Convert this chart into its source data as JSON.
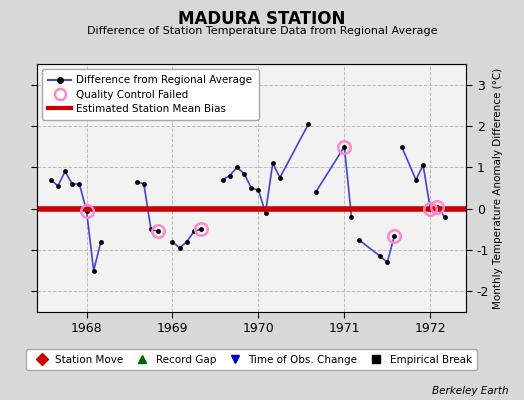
{
  "title": "MADURA STATION",
  "subtitle": "Difference of Station Temperature Data from Regional Average",
  "ylabel_right": "Monthly Temperature Anomaly Difference (°C)",
  "credit": "Berkeley Earth",
  "background_color": "#d8d8d8",
  "plot_bg_color": "#f2f2f2",
  "bias_line_y": 0.0,
  "bias_color": "#cc0000",
  "bias_linewidth": 4.0,
  "line_color": "#4444cc",
  "line_width": 1.2,
  "marker_color": "#000000",
  "marker_size": 3.5,
  "qc_fail_color": "#ff88cc",
  "ylim": [
    -2.5,
    3.5
  ],
  "yticks": [
    -2,
    -1,
    0,
    1,
    2,
    3
  ],
  "xlim": [
    1967.42,
    1972.42
  ],
  "xticks": [
    1968,
    1969,
    1970,
    1971,
    1972
  ],
  "data_x": [
    1967.583,
    1967.667,
    1967.75,
    1967.833,
    1967.917,
    1968.0,
    1968.083,
    1968.167,
    1968.583,
    1968.667,
    1968.75,
    1968.833,
    1969.0,
    1969.083,
    1969.167,
    1969.25,
    1969.333,
    1969.583,
    1969.667,
    1969.75,
    1969.833,
    1969.917,
    1970.0,
    1970.083,
    1970.167,
    1970.25,
    1970.583,
    1970.667,
    1971.0,
    1971.083,
    1971.167,
    1971.417,
    1971.5,
    1971.583,
    1971.667,
    1971.833,
    1971.917,
    1972.0,
    1972.083,
    1972.167
  ],
  "data_y": [
    0.7,
    0.55,
    0.9,
    0.6,
    0.6,
    -0.05,
    -1.5,
    -0.8,
    0.65,
    0.6,
    -0.5,
    -0.55,
    -0.8,
    -0.95,
    -0.8,
    -0.55,
    -0.5,
    0.7,
    0.8,
    1.0,
    0.85,
    0.5,
    0.45,
    -0.1,
    1.1,
    0.75,
    2.05,
    0.4,
    1.5,
    -0.2,
    -0.75,
    -1.15,
    -1.3,
    -0.65,
    1.5,
    0.7,
    1.05,
    0.0,
    0.05,
    -0.2
  ],
  "qc_fail_indices": [
    5,
    11,
    16,
    28,
    33,
    37,
    38
  ],
  "segment_breaks_after": [
    7,
    11,
    16,
    26,
    29,
    33,
    37
  ],
  "grid_color": "#bbbbbb",
  "grid_linestyle": "--",
  "grid_linewidth": 0.7
}
